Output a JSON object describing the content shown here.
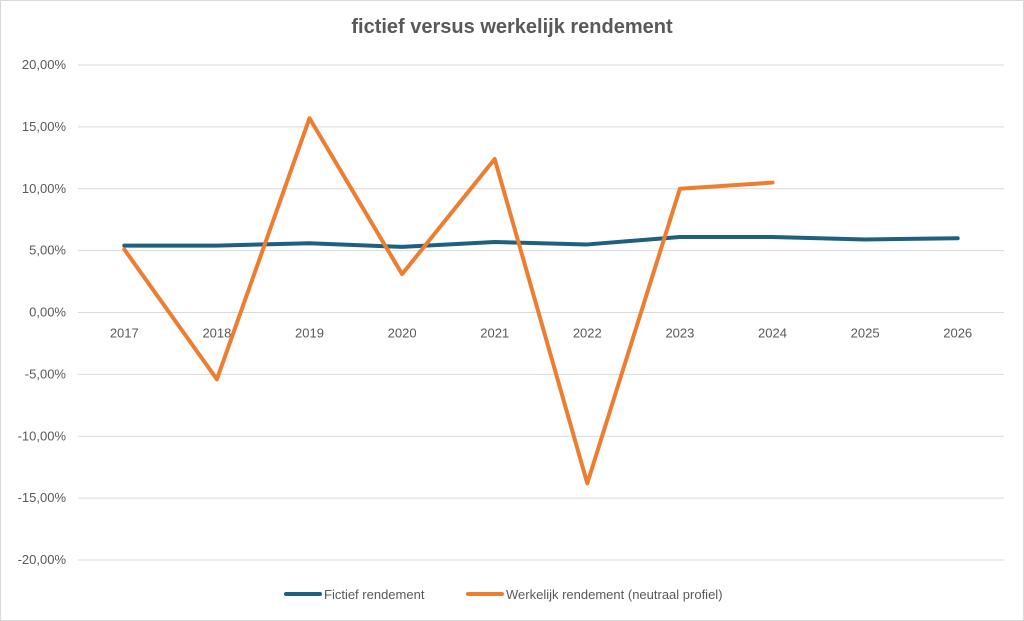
{
  "chart_data": {
    "type": "line",
    "title": "fictief versus werkelijk rendement",
    "xlabel": "",
    "ylabel": "",
    "categories": [
      "2017",
      "2018",
      "2019",
      "2020",
      "2021",
      "2022",
      "2023",
      "2024",
      "2025",
      "2026"
    ],
    "ylim": [
      -0.2,
      0.2
    ],
    "y_ticks": [
      0.2,
      0.15,
      0.1,
      0.05,
      0.0,
      -0.05,
      -0.1,
      -0.15,
      -0.2
    ],
    "y_tick_labels": [
      "20,00%",
      "15,00%",
      "10,00%",
      "5,00%",
      "0,00%",
      "-5,00%",
      "-10,00%",
      "-15,00%",
      "-20,00%"
    ],
    "grid": true,
    "legend_position": "bottom",
    "series": [
      {
        "name": "Fictief rendement",
        "color": "#1f5f7f",
        "values": [
          0.054,
          0.054,
          0.056,
          0.053,
          0.057,
          0.055,
          0.061,
          0.061,
          0.059,
          0.06
        ]
      },
      {
        "name": "Werkelijk rendement (neutraal profiel)",
        "color": "#ed7d31",
        "values": [
          0.051,
          -0.054,
          0.157,
          0.031,
          0.124,
          -0.138,
          0.1,
          0.105,
          null,
          null
        ]
      }
    ]
  }
}
